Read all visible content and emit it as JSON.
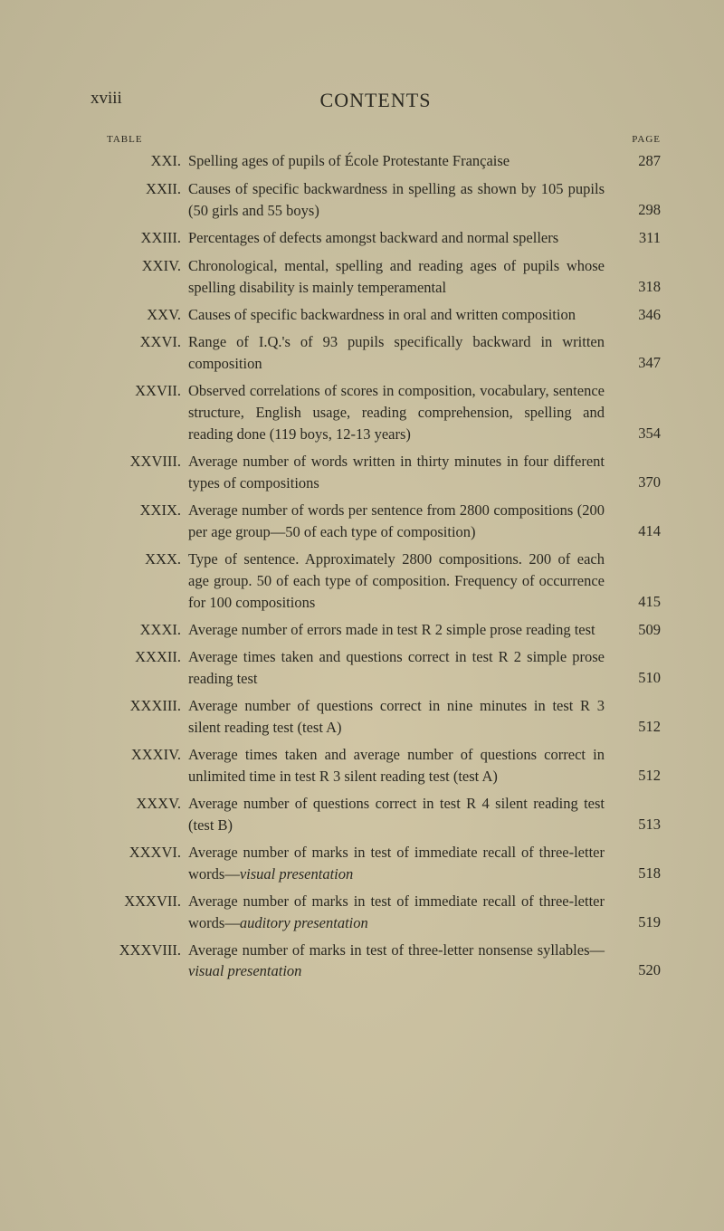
{
  "page": {
    "roman_header": "xviii",
    "title": "CONTENTS",
    "col_table": "TABLE",
    "col_page": "PAGE",
    "background_color": "#c9c0a2",
    "text_color": "#2a2820",
    "body_fontsize_pt": 12,
    "title_fontsize_pt": 16
  },
  "entries": [
    {
      "roman": "XXI.",
      "text": "Spelling ages of pupils of École Protestante Française",
      "page": "287"
    },
    {
      "roman": "XXII.",
      "text": "Causes of specific backwardness in spelling as shown by 105 pupils (50 girls and 55 boys)",
      "page": "298"
    },
    {
      "roman": "XXIII.",
      "text": "Percentages of defects amongst backward and normal spellers",
      "page": "311"
    },
    {
      "roman": "XXIV.",
      "text": "Chronological, mental, spelling and reading ages of pupils whose spelling disability is mainly temperamental",
      "page": "318"
    },
    {
      "roman": "XXV.",
      "text": "Causes of specific backwardness in oral and written composition",
      "page": "346"
    },
    {
      "roman": "XXVI.",
      "text": "Range of I.Q.'s of 93 pupils specifically backward in written composition",
      "page": "347"
    },
    {
      "roman": "XXVII.",
      "text": "Observed correlations of scores in composition, vocabulary, sentence structure, English usage, reading comprehension, spelling and reading done (119 boys, 12-13 years)",
      "page": "354"
    },
    {
      "roman": "XXVIII.",
      "text": "Average number of words written in thirty minutes in four different types of compositions",
      "page": "370"
    },
    {
      "roman": "XXIX.",
      "text": "Average number of words per sentence from 2800 compositions (200 per age group—50 of each type of composition)",
      "page": "414"
    },
    {
      "roman": "XXX.",
      "text": "Type of sentence. Approximately 2800 compositions. 200 of each age group. 50 of each type of composition. Frequency of occurrence for 100 compositions",
      "page": "415"
    },
    {
      "roman": "XXXI.",
      "text": "Average number of errors made in test R 2 simple prose reading test",
      "page": "509"
    },
    {
      "roman": "XXXII.",
      "text": "Average times taken and questions correct in test R 2 simple prose reading test",
      "page": "510"
    },
    {
      "roman": "XXXIII.",
      "text": "Average number of questions correct in nine minutes in test R 3 silent reading test (test A)",
      "page": "512"
    },
    {
      "roman": "XXXIV.",
      "text": "Average times taken and average number of questions correct in unlimited time in test R 3 silent reading test (test A)",
      "page": "512"
    },
    {
      "roman": "XXXV.",
      "text": "Average number of questions correct in test R 4 silent reading test (test B)",
      "page": "513"
    },
    {
      "roman": "XXXVI.",
      "text": "Average number of marks in test of immediate recall of three-letter words—",
      "italic": "visual presentation",
      "page": "518"
    },
    {
      "roman": "XXXVII.",
      "text": "Average number of marks in test of immediate recall of three-letter words—",
      "italic": "auditory presentation",
      "page": "519"
    },
    {
      "roman": "XXXVIII.",
      "text": "Average number of marks in test of three-letter nonsense syllables—",
      "italic": "visual presentation",
      "page": "520"
    }
  ]
}
